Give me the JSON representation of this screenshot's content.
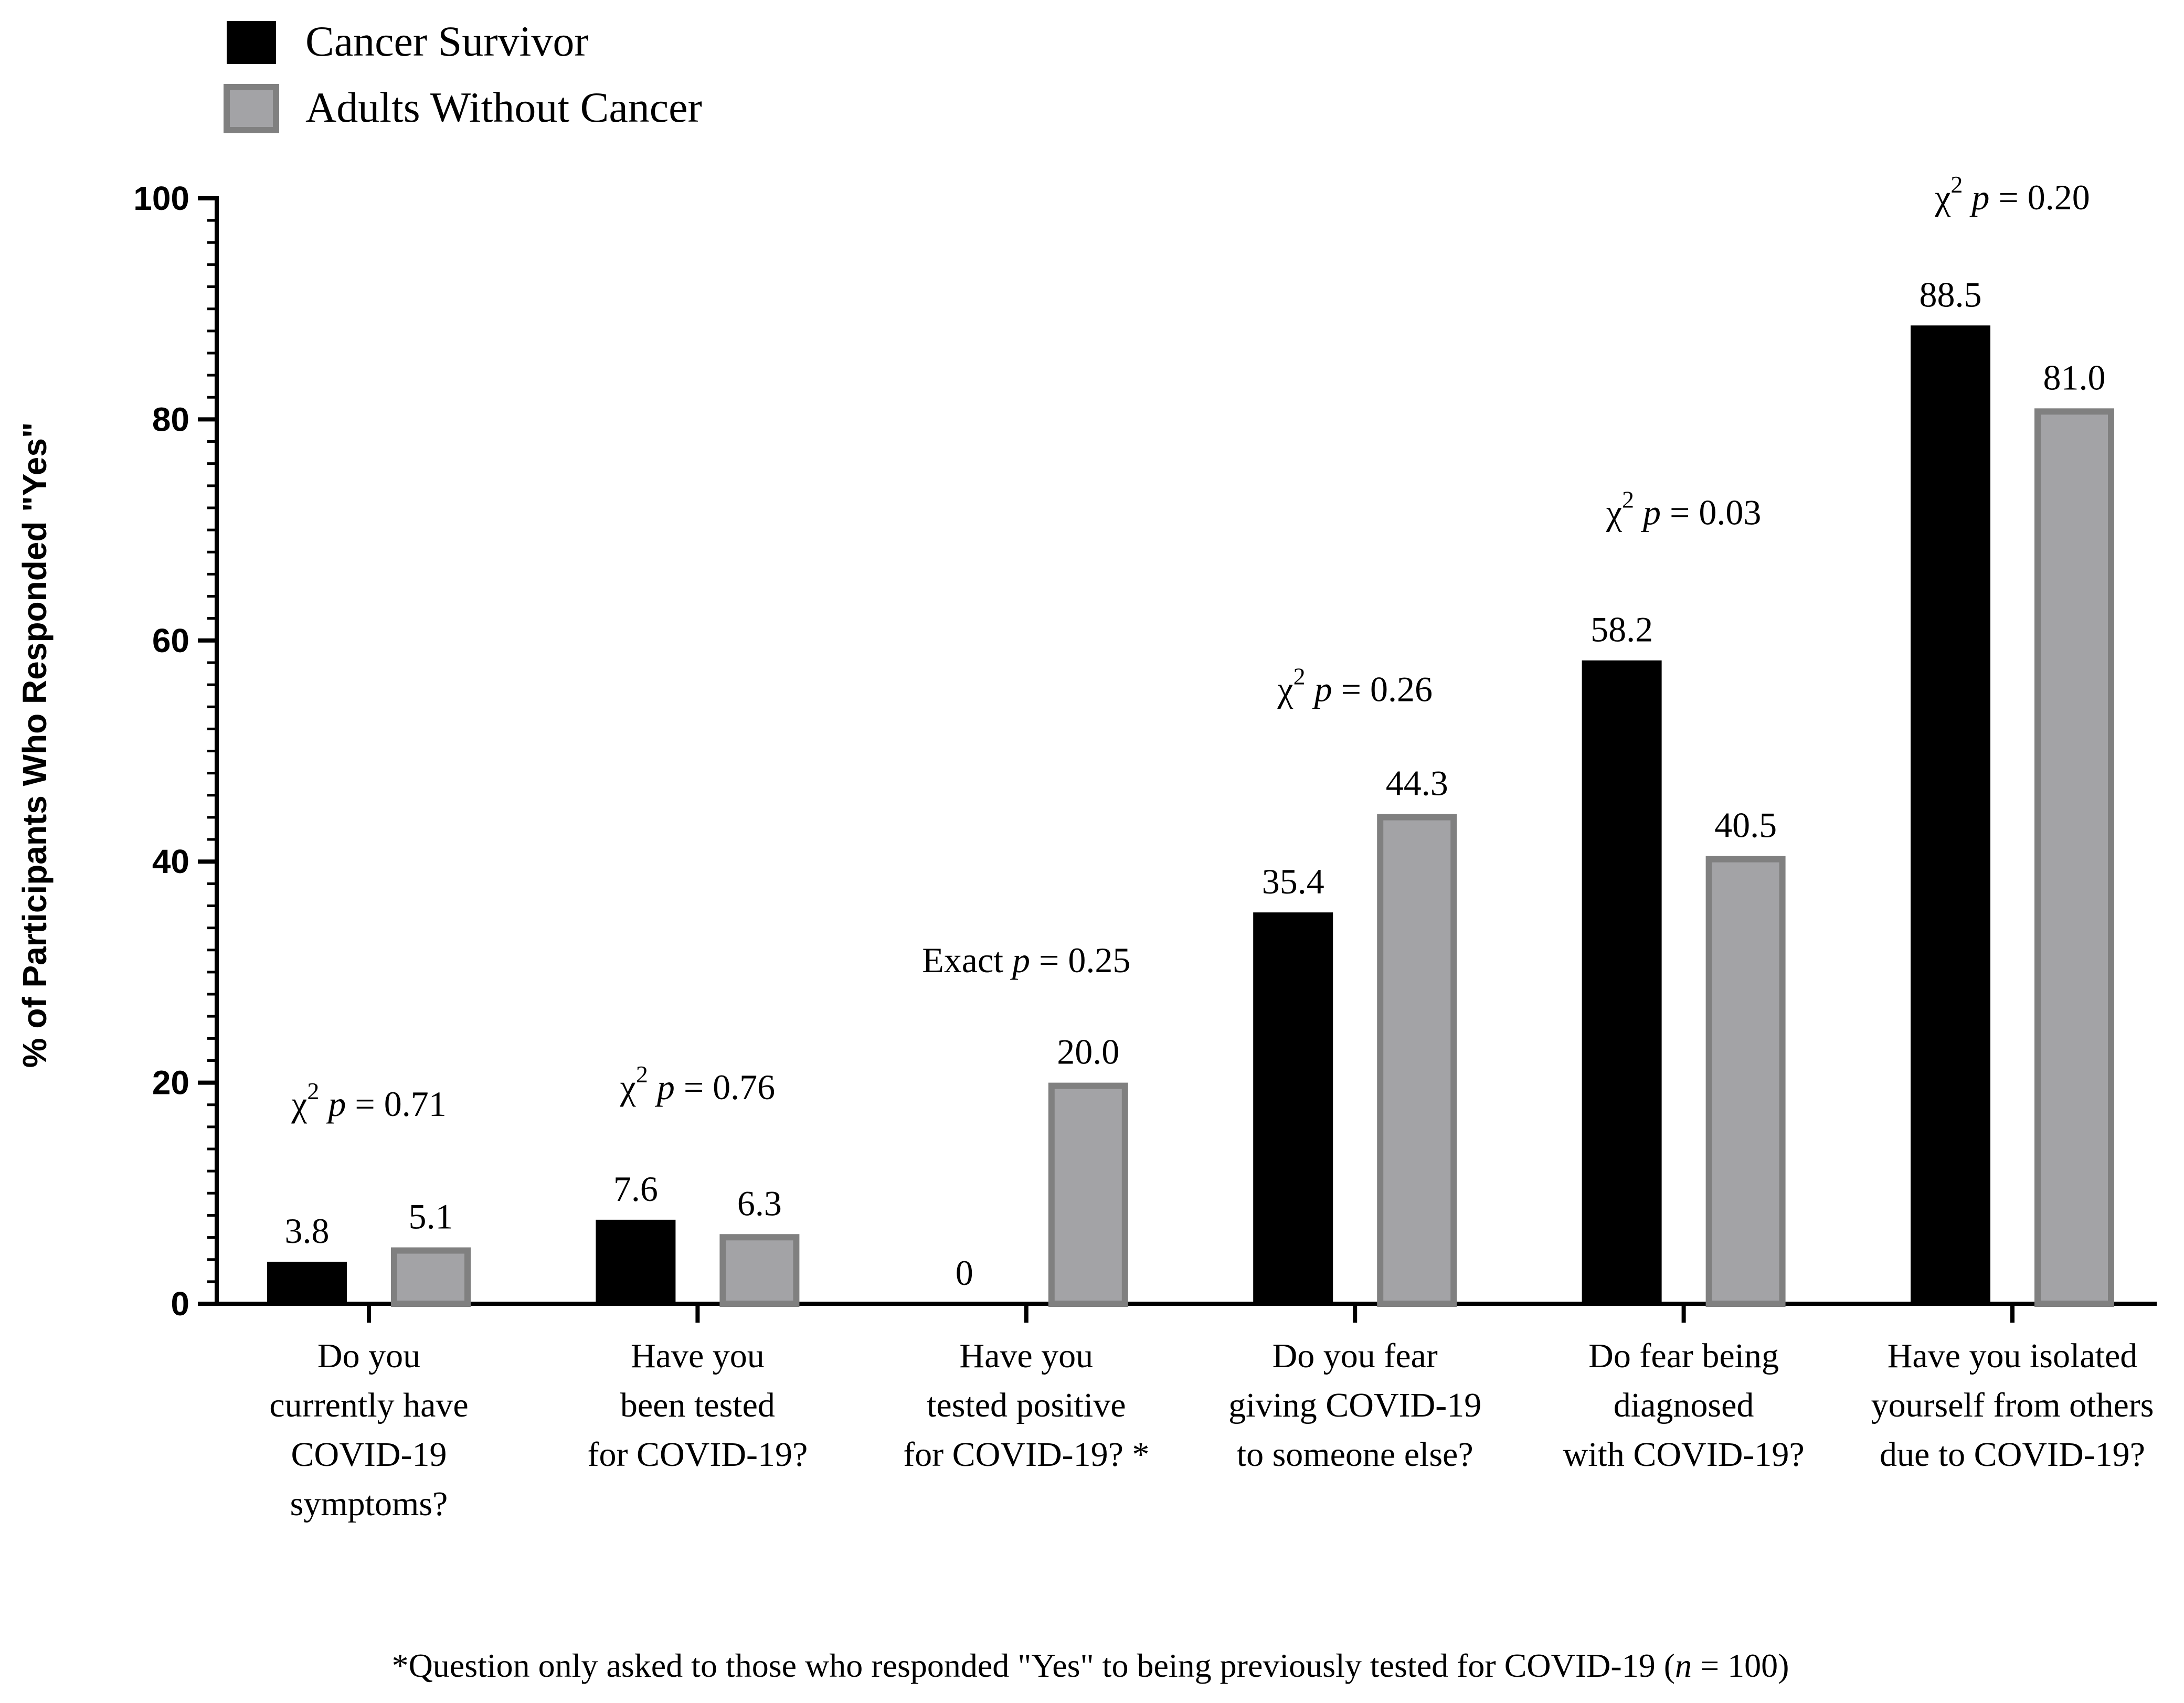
{
  "chart_data": {
    "type": "bar",
    "ylabel": "% of Participants Who Responded \"Yes\"",
    "ylim": [
      0,
      100
    ],
    "yticks": [
      0,
      20,
      40,
      60,
      80,
      100
    ],
    "minor_tick_step": 2,
    "legend_position": "top-left",
    "categories": [
      [
        "Do you",
        "currently have",
        "COVID-19",
        "symptoms?"
      ],
      [
        "Have you",
        "been tested",
        "for COVID-19?"
      ],
      [
        "Have you",
        "tested positive",
        "for COVID-19? *"
      ],
      [
        "Do you fear",
        "giving COVID-19",
        "to someone else?"
      ],
      [
        "Do fear being",
        "diagnosed",
        "with COVID-19?"
      ],
      [
        "Have you isolated",
        "yourself from others",
        "due to COVID-19?"
      ]
    ],
    "series": [
      {
        "name": "Cancer Survivor",
        "color": "#000000",
        "values": [
          3.8,
          7.6,
          0,
          35.4,
          58.2,
          88.5
        ],
        "labels": [
          "3.8",
          "7.6",
          "0",
          "35.4",
          "58.2",
          "88.5"
        ]
      },
      {
        "name": "Adults Without Cancer",
        "color": "#a3a3a6",
        "edge_color": "#808080",
        "values": [
          5.1,
          6.3,
          20.0,
          44.3,
          40.5,
          81.0
        ],
        "labels": [
          "5.1",
          "6.3",
          "20.0",
          "44.3",
          "40.5",
          "81.0"
        ]
      }
    ],
    "annotations": [
      {
        "test": "χ",
        "sup": "2",
        "p_letter": "p",
        "text": " = 0.71",
        "category_index": 0,
        "y": 17
      },
      {
        "test": "χ",
        "sup": "2",
        "p_letter": "p",
        "text": " = 0.76",
        "category_index": 1,
        "y": 18.5
      },
      {
        "test": "Exact ",
        "sup": "",
        "p_letter": "p",
        "text": " = 0.25",
        "category_index": 2,
        "y": 30
      },
      {
        "test": "χ",
        "sup": "2",
        "p_letter": "p",
        "text": " = 0.26",
        "category_index": 3,
        "y": 54.5
      },
      {
        "test": "χ",
        "sup": "2",
        "p_letter": "p",
        "text": " = 0.03",
        "category_index": 4,
        "y": 70.5
      },
      {
        "test": "χ",
        "sup": "2",
        "p_letter": "p",
        "text": " = 0.20",
        "category_index": 5,
        "y": 99
      }
    ],
    "footnote": {
      "before": "*Question only asked to those who responded \"Yes\" to being previously tested for  COVID-19 (",
      "n_letter": "n",
      "after": " = 100)"
    }
  }
}
